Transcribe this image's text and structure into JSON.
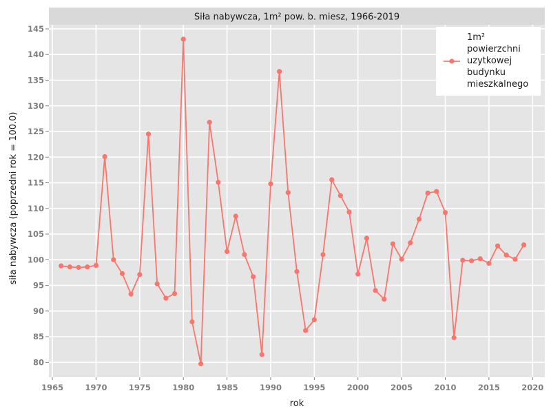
{
  "chart_data": {
    "type": "line",
    "title": "Siła nabywcza, 1m² pow. b. miesz, 1966-2019",
    "xlabel": "rok",
    "ylabel": "siła nabywcza (poprzedni rok = 100.0)",
    "xlim": [
      1964.6,
      2021.4
    ],
    "ylim": [
      77.1,
      145.8
    ],
    "x_ticks": [
      1965,
      1970,
      1975,
      1980,
      1985,
      1990,
      1995,
      2000,
      2005,
      2010,
      2015,
      2020
    ],
    "y_ticks": [
      80,
      85,
      90,
      95,
      100,
      105,
      110,
      115,
      120,
      125,
      130,
      135,
      140,
      145
    ],
    "grid": true,
    "legend_position": "top-right",
    "line_color": "#f8766d",
    "series": [
      {
        "name": "1m²\npowierzchni\nuzytkowej\nbudynku\nmieszkalnego",
        "x": [
          1966,
          1967,
          1968,
          1969,
          1970,
          1971,
          1972,
          1973,
          1974,
          1975,
          1976,
          1977,
          1978,
          1979,
          1980,
          1981,
          1982,
          1983,
          1984,
          1985,
          1986,
          1987,
          1988,
          1989,
          1990,
          1991,
          1992,
          1993,
          1994,
          1995,
          1996,
          1997,
          1998,
          1999,
          2000,
          2001,
          2002,
          2003,
          2004,
          2005,
          2006,
          2007,
          2008,
          2009,
          2010,
          2011,
          2012,
          2013,
          2014,
          2015,
          2016,
          2017,
          2018,
          2019
        ],
        "values": [
          98.8,
          98.6,
          98.5,
          98.6,
          98.9,
          120.1,
          100.0,
          97.3,
          93.3,
          97.1,
          124.5,
          95.3,
          92.5,
          93.4,
          143.0,
          87.9,
          79.7,
          126.8,
          115.1,
          101.6,
          108.5,
          101.0,
          96.7,
          81.5,
          114.8,
          136.7,
          113.1,
          97.7,
          86.2,
          88.3,
          101.0,
          115.6,
          112.5,
          109.3,
          97.2,
          104.2,
          94.0,
          92.3,
          103.1,
          100.1,
          103.3,
          107.9,
          113.0,
          113.3,
          109.2,
          84.8,
          99.9,
          99.8,
          100.2,
          99.3,
          102.7,
          100.9,
          100.1,
          102.9
        ]
      }
    ]
  }
}
